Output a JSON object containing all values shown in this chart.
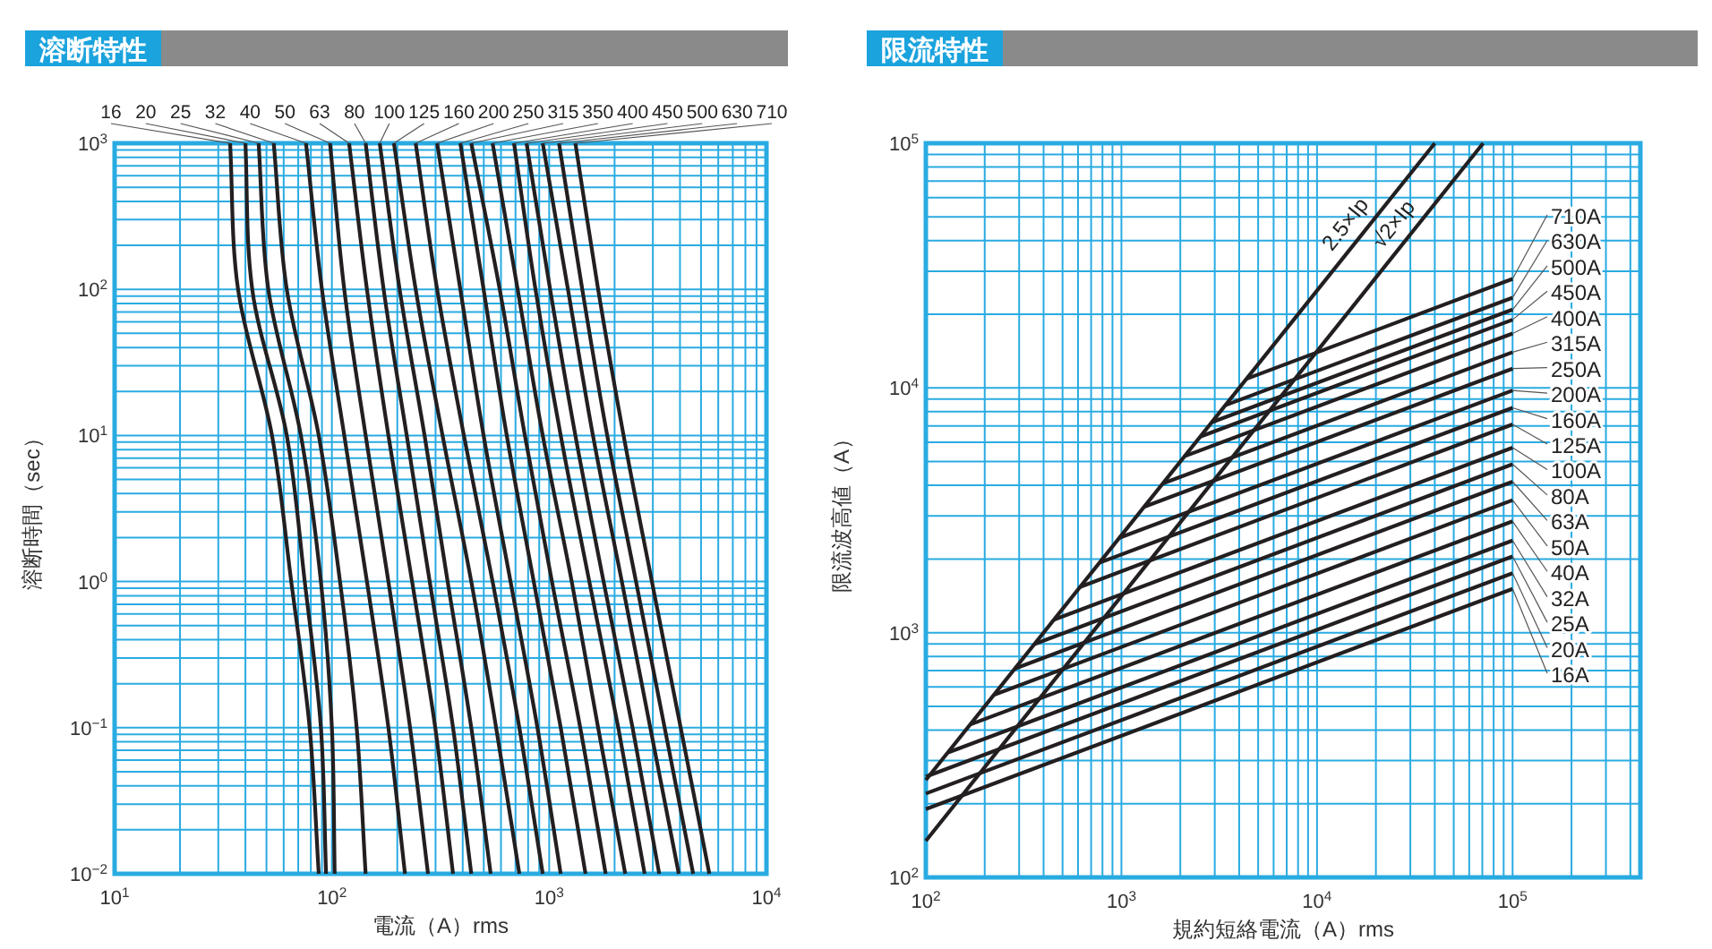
{
  "chart_data": [
    {
      "type": "line",
      "title": "溶断特性",
      "xlabel": "電流（A）rms",
      "ylabel": "溶断時間（sec）",
      "log": "xy",
      "grid": true,
      "xlim": [
        10,
        10000
      ],
      "ylim": [
        0.01,
        1000
      ],
      "xticks": [
        {
          "value": 10,
          "label": "10$^{1}$"
        },
        {
          "value": 100,
          "label": "10$^{2}$"
        },
        {
          "value": 1000,
          "label": "10$^{3}$"
        },
        {
          "value": 10000,
          "label": "10$^{4}$"
        }
      ],
      "yticks": [
        {
          "value": 0.01,
          "label": "10$^{−2}$"
        },
        {
          "value": 0.1,
          "label": "10$^{−1}$"
        },
        {
          "value": 1,
          "label": "10$^{0}$"
        },
        {
          "value": 10,
          "label": "10$^{1}$"
        },
        {
          "value": 100,
          "label": "10$^{2}$"
        },
        {
          "value": 1000,
          "label": "10$^{3}$"
        }
      ],
      "series": [
        {
          "name": "16",
          "color": "#231f20",
          "x": [
            34,
            37,
            53,
            65,
            79,
            87
          ],
          "values": [
            1000,
            100,
            10,
            1,
            0.1,
            0.01
          ]
        },
        {
          "name": "20",
          "color": "#231f20",
          "x": [
            40,
            43,
            62,
            75,
            89,
            94
          ],
          "values": [
            1000,
            100,
            10,
            1,
            0.1,
            0.01
          ]
        },
        {
          "name": "25",
          "color": "#231f20",
          "x": [
            46,
            51,
            72,
            89,
            100,
            103
          ],
          "values": [
            1000,
            100,
            10,
            1,
            0.1,
            0.01
          ]
        },
        {
          "name": "32",
          "color": "#231f20",
          "x": [
            54,
            62,
            87,
            109,
            130,
            143
          ],
          "values": [
            1000,
            100,
            10,
            1,
            0.1,
            0.01
          ]
        },
        {
          "name": "40",
          "color": "#231f20",
          "x": [
            76,
            90,
            114,
            145,
            182,
            217
          ],
          "values": [
            1000,
            100,
            10,
            1,
            0.1,
            0.01
          ]
        },
        {
          "name": "50",
          "color": "#231f20",
          "x": [
            98,
            114,
            143,
            182,
            229,
            277
          ],
          "values": [
            1000,
            100,
            10,
            1,
            0.1,
            0.01
          ]
        },
        {
          "name": "63",
          "color": "#231f20",
          "x": [
            120,
            145,
            182,
            234,
            299,
            361
          ],
          "values": [
            1000,
            100,
            10,
            1,
            0.1,
            0.01
          ]
        },
        {
          "name": "80",
          "color": "#231f20",
          "x": [
            143,
            173,
            221,
            282,
            361,
            438
          ],
          "values": [
            1000,
            100,
            10,
            1,
            0.1,
            0.01
          ]
        },
        {
          "name": "100",
          "color": "#231f20",
          "x": [
            166,
            205,
            267,
            341,
            438,
            538
          ],
          "values": [
            1000,
            100,
            10,
            1,
            0.1,
            0.01
          ]
        },
        {
          "name": "125",
          "color": "#231f20",
          "x": [
            193,
            243,
            323,
            438,
            570,
            729
          ],
          "values": [
            1000,
            100,
            10,
            1,
            0.1,
            0.01
          ]
        },
        {
          "name": "160",
          "color": "#231f20",
          "x": [
            243,
            305,
            405,
            549,
            729,
            934
          ],
          "values": [
            1000,
            100,
            10,
            1,
            0.1,
            0.01
          ]
        },
        {
          "name": "200",
          "color": "#231f20",
          "x": [
            305,
            390,
            499,
            664,
            883,
            1130
          ],
          "values": [
            1000,
            100,
            10,
            1,
            0.1,
            0.01
          ]
        },
        {
          "name": "250",
          "color": "#231f20",
          "x": [
            390,
            499,
            638,
            849,
            1130,
            1470
          ],
          "values": [
            1000,
            100,
            10,
            1,
            0.1,
            0.01
          ]
        },
        {
          "name": "315",
          "color": "#231f20",
          "x": [
            438,
            592,
            773,
            1030,
            1390,
            1820
          ],
          "values": [
            1000,
            100,
            10,
            1,
            0.1,
            0.01
          ]
        },
        {
          "name": "350",
          "color": "#231f20",
          "x": [
            549,
            716,
            934,
            1270,
            1680,
            2240
          ],
          "values": [
            1000,
            100,
            10,
            1,
            0.1,
            0.01
          ]
        },
        {
          "name": "400",
          "color": "#231f20",
          "x": [
            689,
            865,
            1130,
            1530,
            2080,
            2750
          ],
          "values": [
            1000,
            100,
            10,
            1,
            0.1,
            0.01
          ]
        },
        {
          "name": "450",
          "color": "#231f20",
          "x": [
            787,
            1010,
            1320,
            1780,
            2420,
            3210
          ],
          "values": [
            1000,
            100,
            10,
            1,
            0.1,
            0.01
          ]
        },
        {
          "name": "500",
          "color": "#231f20",
          "x": [
            934,
            1220,
            1590,
            2160,
            2920,
            3950
          ],
          "values": [
            1000,
            100,
            10,
            1,
            0.1,
            0.01
          ]
        },
        {
          "name": "630",
          "color": "#231f20",
          "x": [
            1110,
            1420,
            1850,
            2510,
            3400,
            4600
          ],
          "values": [
            1000,
            100,
            10,
            1,
            0.1,
            0.01
          ]
        },
        {
          "name": "710",
          "color": "#231f20",
          "x": [
            1320,
            1680,
            2200,
            2970,
            4030,
            5460
          ],
          "values": [
            1000,
            100,
            10,
            1,
            0.1,
            0.01
          ]
        }
      ]
    },
    {
      "type": "line",
      "title": "限流特性",
      "xlabel": "規約短絡電流（A）rms",
      "ylabel": "限流波高値（A）",
      "log": "xy",
      "grid": true,
      "xlim": [
        100,
        450000
      ],
      "ylim": [
        100,
        100000
      ],
      "xticks": [
        {
          "value": 100,
          "label": "10$^{2}$"
        },
        {
          "value": 1000,
          "label": "10$^{3}$"
        },
        {
          "value": 10000,
          "label": "10$^{4}$"
        },
        {
          "value": 100000,
          "label": "10$^{5}$"
        }
      ],
      "yticks": [
        {
          "value": 100,
          "label": "10$^{2}$"
        },
        {
          "value": 1000,
          "label": "10$^{3}$"
        },
        {
          "value": 10000,
          "label": "10$^{4}$"
        },
        {
          "value": 100000,
          "label": "10$^{5}$"
        }
      ],
      "series": [
        {
          "name": "2.5×Ip",
          "color": "#231f20",
          "x": [
            100,
            40000
          ],
          "values": [
            250,
            100000
          ]
        },
        {
          "name": "√2×Ip",
          "color": "#231f20",
          "x": [
            100,
            70700
          ],
          "values": [
            141,
            100000
          ]
        },
        {
          "name": "710A",
          "color": "#231f20",
          "x": [
            4365,
            100000
          ],
          "values": [
            10900,
            27900
          ]
        },
        {
          "name": "630A",
          "color": "#231f20",
          "x": [
            3400,
            100000
          ],
          "values": [
            8500,
            23400
          ]
        },
        {
          "name": "500A",
          "color": "#231f20",
          "x": [
            2890,
            100000
          ],
          "values": [
            7230,
            20900
          ]
        },
        {
          "name": "450A",
          "color": "#231f20",
          "x": [
            2530,
            100000
          ],
          "values": [
            6320,
            19000
          ]
        },
        {
          "name": "400A",
          "color": "#231f20",
          "x": [
            2100,
            100000
          ],
          "values": [
            5260,
            16700
          ]
        },
        {
          "name": "315A",
          "color": "#231f20",
          "x": [
            1630,
            100000
          ],
          "values": [
            4070,
            14000
          ]
        },
        {
          "name": "250A",
          "color": "#231f20",
          "x": [
            1310,
            100000
          ],
          "values": [
            3270,
            12000
          ]
        },
        {
          "name": "200A",
          "color": "#231f20",
          "x": [
            975,
            100000
          ],
          "values": [
            2440,
            9770
          ]
        },
        {
          "name": "160A",
          "color": "#231f20",
          "x": [
            771,
            100000
          ],
          "values": [
            1930,
            8300
          ]
        },
        {
          "name": "125A",
          "color": "#231f20",
          "x": [
            617,
            100000
          ],
          "values": [
            1540,
            7100
          ]
        },
        {
          "name": "100A",
          "color": "#231f20",
          "x": [
            451,
            100000
          ],
          "values": [
            1130,
            5700
          ]
        },
        {
          "name": "80A",
          "color": "#231f20",
          "x": [
            361,
            100000
          ],
          "values": [
            900,
            4880
          ]
        },
        {
          "name": "63A",
          "color": "#231f20",
          "x": [
            286,
            100000
          ],
          "values": [
            714,
            4140
          ]
        },
        {
          "name": "50A",
          "color": "#231f20",
          "x": [
            222,
            100000
          ],
          "values": [
            556,
            3480
          ]
        },
        {
          "name": "40A",
          "color": "#231f20",
          "x": [
            168,
            100000
          ],
          "values": [
            421,
            2850
          ]
        },
        {
          "name": "32A",
          "color": "#231f20",
          "x": [
            130,
            100000
          ],
          "values": [
            324,
            2380
          ]
        },
        {
          "name": "25A",
          "color": "#231f20",
          "x": [
            100,
            100000
          ],
          "values": [
            258,
            2050
          ]
        },
        {
          "name": "20A",
          "color": "#231f20",
          "x": [
            100,
            100000
          ],
          "values": [
            220,
            1750
          ]
        },
        {
          "name": "16A",
          "color": "#231f20",
          "x": [
            100,
            100000
          ],
          "values": [
            190,
            1510
          ]
        }
      ]
    }
  ]
}
